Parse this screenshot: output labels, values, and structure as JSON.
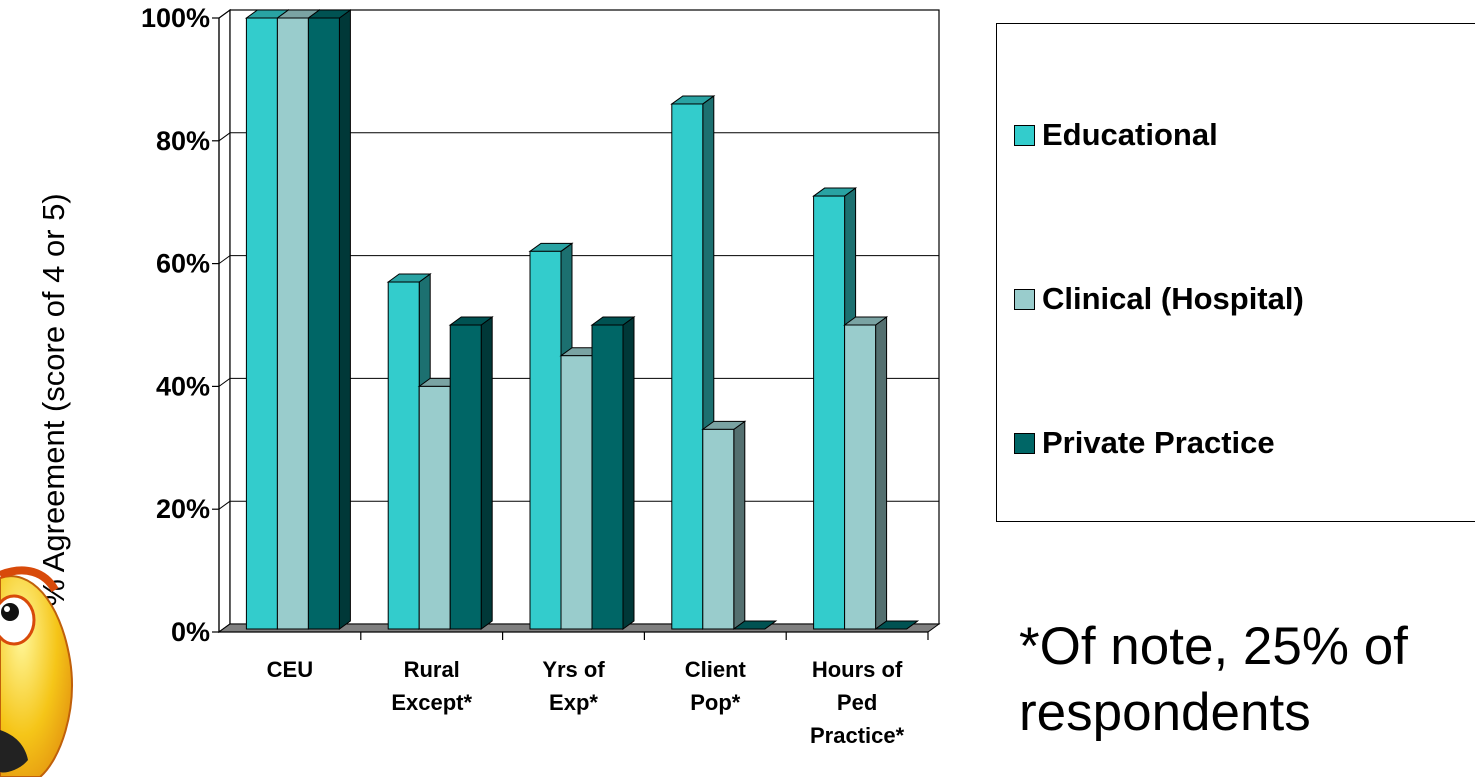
{
  "chart_data": {
    "type": "bar",
    "categories": [
      [
        "CEU"
      ],
      [
        "Rural",
        "Except*"
      ],
      [
        "Yrs of",
        "Exp*"
      ],
      [
        "Client",
        "Pop*"
      ],
      [
        "Hours of",
        "Ped",
        "Practice*"
      ]
    ],
    "series": [
      {
        "name": "Educational",
        "values": [
          100,
          57,
          62,
          86,
          71
        ],
        "color": "#33CCCC"
      },
      {
        "name": "Clinical (Hospital)",
        "values": [
          100,
          40,
          45,
          33,
          50
        ],
        "color": "#99CCCC"
      },
      {
        "name": "Private Practice",
        "values": [
          100,
          50,
          50,
          0,
          0
        ],
        "color": "#006666"
      }
    ],
    "yticks": [
      "0%",
      "20%",
      "40%",
      "60%",
      "80%",
      "100%"
    ],
    "ylim": [
      0,
      100
    ],
    "ylabel": "% Agreement (score of 4 or 5)",
    "grid": true,
    "legend_position": "right",
    "style": "3d-clustered"
  },
  "note": {
    "line1": "*Of note, 25% of",
    "line2": "respondents"
  }
}
